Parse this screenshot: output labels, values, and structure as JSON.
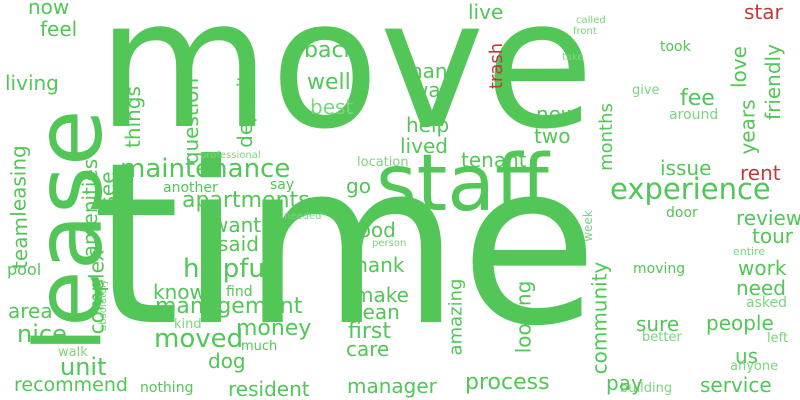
{
  "palette": {
    "green": "#52c656",
    "light_green": "#7ad67e",
    "red": "#c0393b",
    "background": "#ffffff"
  },
  "words": [
    {
      "text": "move",
      "color": "green"
    },
    {
      "text": "time",
      "color": "green"
    },
    {
      "text": "lease",
      "color": "green"
    },
    {
      "text": "staff",
      "color": "green"
    },
    {
      "text": "maintenance",
      "color": "green"
    },
    {
      "text": "experience",
      "color": "green"
    },
    {
      "text": "apartments",
      "color": "green"
    },
    {
      "text": "helpful",
      "color": "green"
    },
    {
      "text": "management",
      "color": "green"
    },
    {
      "text": "moved",
      "color": "green"
    },
    {
      "text": "process",
      "color": "green"
    },
    {
      "text": "resident",
      "color": "green"
    },
    {
      "text": "manager",
      "color": "green"
    },
    {
      "text": "recommend",
      "color": "green"
    },
    {
      "text": "unit",
      "color": "green"
    },
    {
      "text": "nice",
      "color": "green"
    },
    {
      "text": "area",
      "color": "green"
    },
    {
      "text": "leasing",
      "color": "green"
    },
    {
      "text": "living",
      "color": "green"
    },
    {
      "text": "feel",
      "color": "green"
    },
    {
      "text": "now",
      "color": "green"
    },
    {
      "text": "back",
      "color": "green"
    },
    {
      "text": "well",
      "color": "green"
    },
    {
      "text": "best",
      "color": "light_green"
    },
    {
      "text": "deposit",
      "color": "green"
    },
    {
      "text": "question",
      "color": "green"
    },
    {
      "text": "things",
      "color": "green"
    },
    {
      "text": "live",
      "color": "green"
    },
    {
      "text": "trash",
      "color": "red"
    },
    {
      "text": "nan",
      "color": "green"
    },
    {
      "text": "way",
      "color": "green"
    },
    {
      "text": "help",
      "color": "green"
    },
    {
      "text": "lived",
      "color": "green"
    },
    {
      "text": "tenant",
      "color": "green"
    },
    {
      "text": "new",
      "color": "green"
    },
    {
      "text": "two",
      "color": "green"
    },
    {
      "text": "months",
      "color": "green"
    },
    {
      "text": "fee",
      "color": "green"
    },
    {
      "text": "issue",
      "color": "green"
    },
    {
      "text": "rent",
      "color": "red"
    },
    {
      "text": "star",
      "color": "red"
    },
    {
      "text": "love",
      "color": "green"
    },
    {
      "text": "years",
      "color": "green"
    },
    {
      "text": "friendly",
      "color": "green"
    },
    {
      "text": "took",
      "color": "green"
    },
    {
      "text": "give",
      "color": "light_green"
    },
    {
      "text": "around",
      "color": "light_green"
    },
    {
      "text": "called",
      "color": "light_green"
    },
    {
      "text": "front",
      "color": "light_green"
    },
    {
      "text": "take",
      "color": "light_green"
    },
    {
      "text": "review",
      "color": "green"
    },
    {
      "text": "tour",
      "color": "green"
    },
    {
      "text": "work",
      "color": "green"
    },
    {
      "text": "need",
      "color": "green"
    },
    {
      "text": "asked",
      "color": "light_green"
    },
    {
      "text": "left",
      "color": "light_green"
    },
    {
      "text": "entire",
      "color": "light_green"
    },
    {
      "text": "people",
      "color": "green"
    },
    {
      "text": "sure",
      "color": "green"
    },
    {
      "text": "us",
      "color": "green"
    },
    {
      "text": "better",
      "color": "light_green"
    },
    {
      "text": "anyone",
      "color": "light_green"
    },
    {
      "text": "service",
      "color": "green"
    },
    {
      "text": "building",
      "color": "light_green"
    },
    {
      "text": "pay",
      "color": "green"
    },
    {
      "text": "door",
      "color": "green"
    },
    {
      "text": "moving",
      "color": "green"
    },
    {
      "text": "community",
      "color": "green"
    },
    {
      "text": "week",
      "color": "light_green"
    },
    {
      "text": "looking",
      "color": "green"
    },
    {
      "text": "amazing",
      "color": "green"
    },
    {
      "text": "first",
      "color": "green"
    },
    {
      "text": "clean",
      "color": "green"
    },
    {
      "text": "make",
      "color": "green"
    },
    {
      "text": "care",
      "color": "green"
    },
    {
      "text": "Thank",
      "color": "green"
    },
    {
      "text": "good",
      "color": "green"
    },
    {
      "text": "person",
      "color": "light_green"
    },
    {
      "text": "location",
      "color": "light_green"
    },
    {
      "text": "go",
      "color": "green"
    },
    {
      "text": "say",
      "color": "green"
    },
    {
      "text": "another",
      "color": "green"
    },
    {
      "text": "see",
      "color": "green"
    },
    {
      "text": "said",
      "color": "green"
    },
    {
      "text": "want",
      "color": "green"
    },
    {
      "text": "know",
      "color": "green"
    },
    {
      "text": "money",
      "color": "green"
    },
    {
      "text": "find",
      "color": "green"
    },
    {
      "text": "dog",
      "color": "green"
    },
    {
      "text": "much",
      "color": "green"
    },
    {
      "text": "kind",
      "color": "light_green"
    },
    {
      "text": "nothing",
      "color": "green"
    },
    {
      "text": "walk",
      "color": "light_green"
    },
    {
      "text": "absolutely",
      "color": "light_green"
    },
    {
      "text": "complex",
      "color": "green"
    },
    {
      "text": "amenities",
      "color": "green"
    },
    {
      "text": "team",
      "color": "green"
    },
    {
      "text": "pool",
      "color": "green"
    },
    {
      "text": "needed",
      "color": "light_green"
    },
    {
      "text": "professional",
      "color": "light_green"
    }
  ]
}
